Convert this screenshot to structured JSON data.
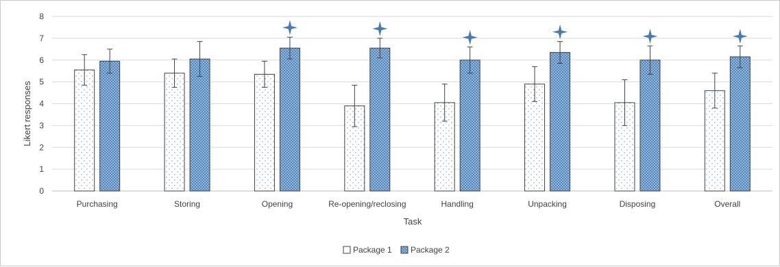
{
  "chart_data": {
    "type": "bar",
    "xlabel": "Task",
    "ylabel": "Likert responses",
    "ylim": [
      0,
      8
    ],
    "yticks": [
      0,
      1,
      2,
      3,
      4,
      5,
      6,
      7,
      8
    ],
    "grid": true,
    "legend_position": "bottom",
    "categories": [
      "Purchasing",
      "Storing",
      "Opening",
      "Re-opening/reclosing",
      "Handling",
      "Unpacking",
      "Disposing",
      "Overall"
    ],
    "series": [
      {
        "name": "Package 1",
        "pattern": "dotted-white",
        "color": "#ffffff",
        "values": [
          5.55,
          5.4,
          5.35,
          3.9,
          4.05,
          4.9,
          4.05,
          4.6
        ],
        "errors": [
          0.7,
          0.65,
          0.6,
          0.95,
          0.85,
          0.8,
          1.05,
          0.8
        ]
      },
      {
        "name": "Package 2",
        "pattern": "crosshatch-blue",
        "color": "#9dc3e6",
        "values": [
          5.95,
          6.05,
          6.55,
          6.55,
          6.0,
          6.35,
          6.0,
          6.15
        ],
        "errors": [
          0.55,
          0.8,
          0.5,
          0.45,
          0.6,
          0.5,
          0.65,
          0.5
        ]
      }
    ],
    "significance_markers": [
      false,
      false,
      true,
      true,
      true,
      true,
      true,
      true
    ],
    "marker_color": "#4a7ab5"
  }
}
